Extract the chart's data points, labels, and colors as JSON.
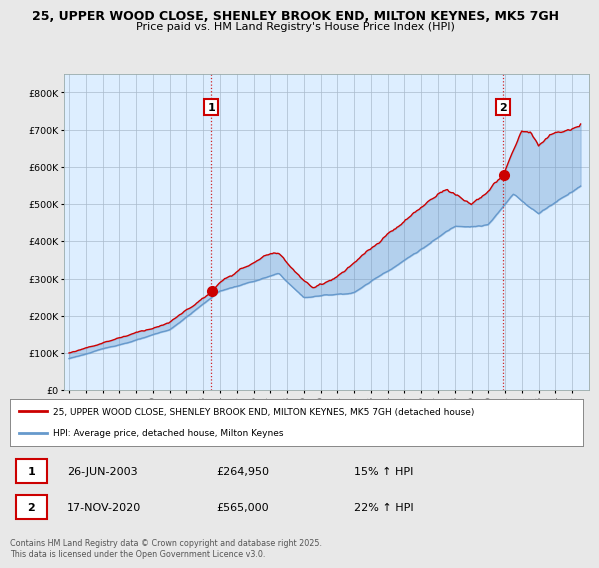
{
  "title_line1": "25, UPPER WOOD CLOSE, SHENLEY BROOK END, MILTON KEYNES, MK5 7GH",
  "title_line2": "Price paid vs. HM Land Registry's House Price Index (HPI)",
  "background_color": "#e8e8e8",
  "plot_bg_color": "#ddeeff",
  "red_color": "#cc0000",
  "blue_color": "#6699cc",
  "fill_color": "#c8ddf0",
  "red_color_dark": "#bb0000",
  "sale1_date": "26-JUN-2003",
  "sale1_price": 264950,
  "sale1_hpi": "15% ↑ HPI",
  "sale2_date": "17-NOV-2020",
  "sale2_price": 565000,
  "sale2_hpi": "22% ↑ HPI",
  "legend_label1": "25, UPPER WOOD CLOSE, SHENLEY BROOK END, MILTON KEYNES, MK5 7GH (detached house)",
  "legend_label2": "HPI: Average price, detached house, Milton Keynes",
  "footer": "Contains HM Land Registry data © Crown copyright and database right 2025.\nThis data is licensed under the Open Government Licence v3.0.",
  "ylim": [
    0,
    850000
  ],
  "yticks": [
    0,
    100000,
    200000,
    300000,
    400000,
    500000,
    600000,
    700000,
    800000
  ],
  "sale1_year": 2003.49,
  "sale2_year": 2020.88
}
